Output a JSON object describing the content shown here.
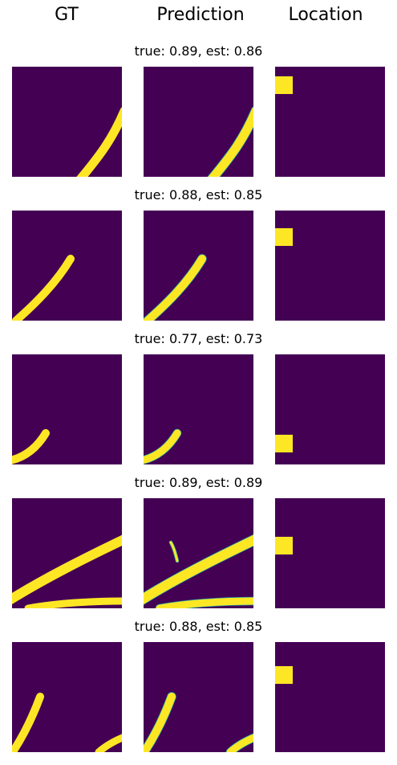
{
  "columns": [
    "GT",
    "Prediction",
    "Location"
  ],
  "colors": {
    "background": "#440154",
    "foreground": "#fde725",
    "edge": "#21a2a8"
  },
  "chart_data": {
    "type": "image-grid",
    "rows": [
      {
        "title": "true: 0.89, est: 0.86",
        "true": 0.89,
        "est": 0.86,
        "location": "top-left"
      },
      {
        "title": "true: 0.88, est: 0.85",
        "true": 0.88,
        "est": 0.85,
        "location": "upper-left"
      },
      {
        "title": "true: 0.77, est: 0.73",
        "true": 0.77,
        "est": 0.73,
        "location": "bottom-left"
      },
      {
        "title": "true: 0.89, est: 0.89",
        "true": 0.89,
        "est": 0.89,
        "location": "middle-left"
      },
      {
        "title": "true: 0.88, est: 0.85",
        "true": 0.88,
        "est": 0.85,
        "location": "top-left"
      }
    ]
  }
}
